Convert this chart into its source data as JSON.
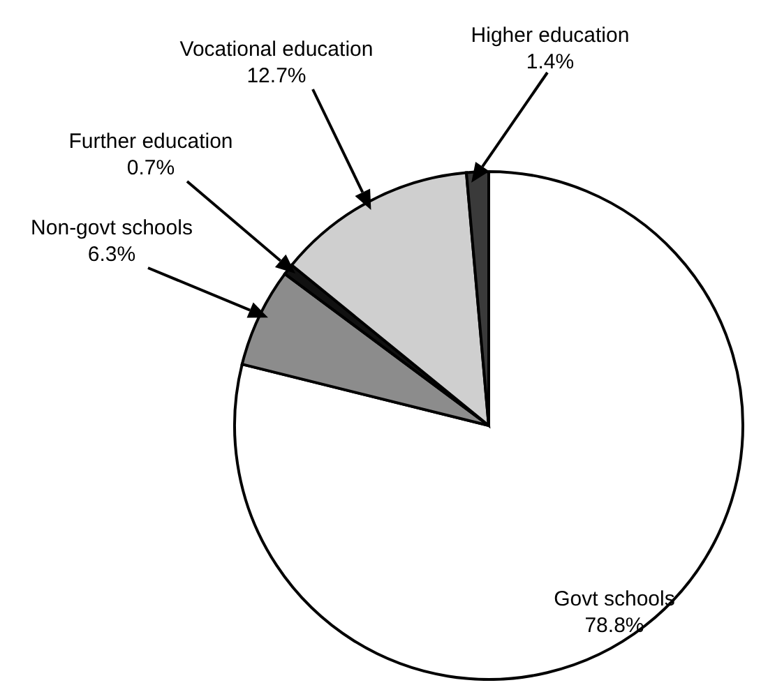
{
  "chart_data": {
    "type": "pie",
    "categories": [
      "Govt schools",
      "Non-govt schools",
      "Further education",
      "Vocational education",
      "Higher education"
    ],
    "values": [
      78.8,
      6.3,
      0.7,
      12.7,
      1.4
    ],
    "colors": [
      "#ffffff",
      "#8c8c8c",
      "#111111",
      "#cfcfcf",
      "#3a3a3a"
    ],
    "value_labels": [
      "78.8%",
      "6.3%",
      "0.7%",
      "12.7%",
      "1.4%"
    ]
  }
}
